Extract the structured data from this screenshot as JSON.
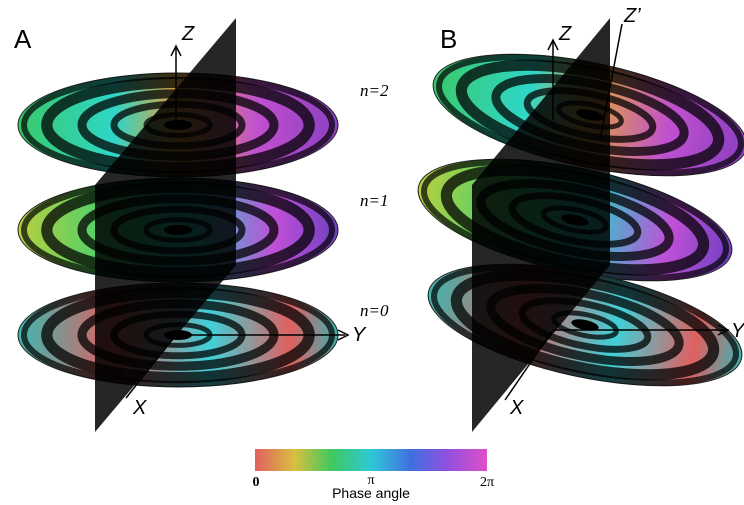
{
  "panels": [
    {
      "label": "A",
      "z": "Z",
      "x": "X",
      "y": "Y"
    },
    {
      "label": "B",
      "z": "Z",
      "z_prime": "Z’",
      "x": "X",
      "y": "Y"
    }
  ],
  "levels": [
    "n=2",
    "n=1",
    "n=0"
  ],
  "colorbar": {
    "ticks": [
      "0",
      "π",
      "2π"
    ],
    "label": "Phase angle"
  }
}
